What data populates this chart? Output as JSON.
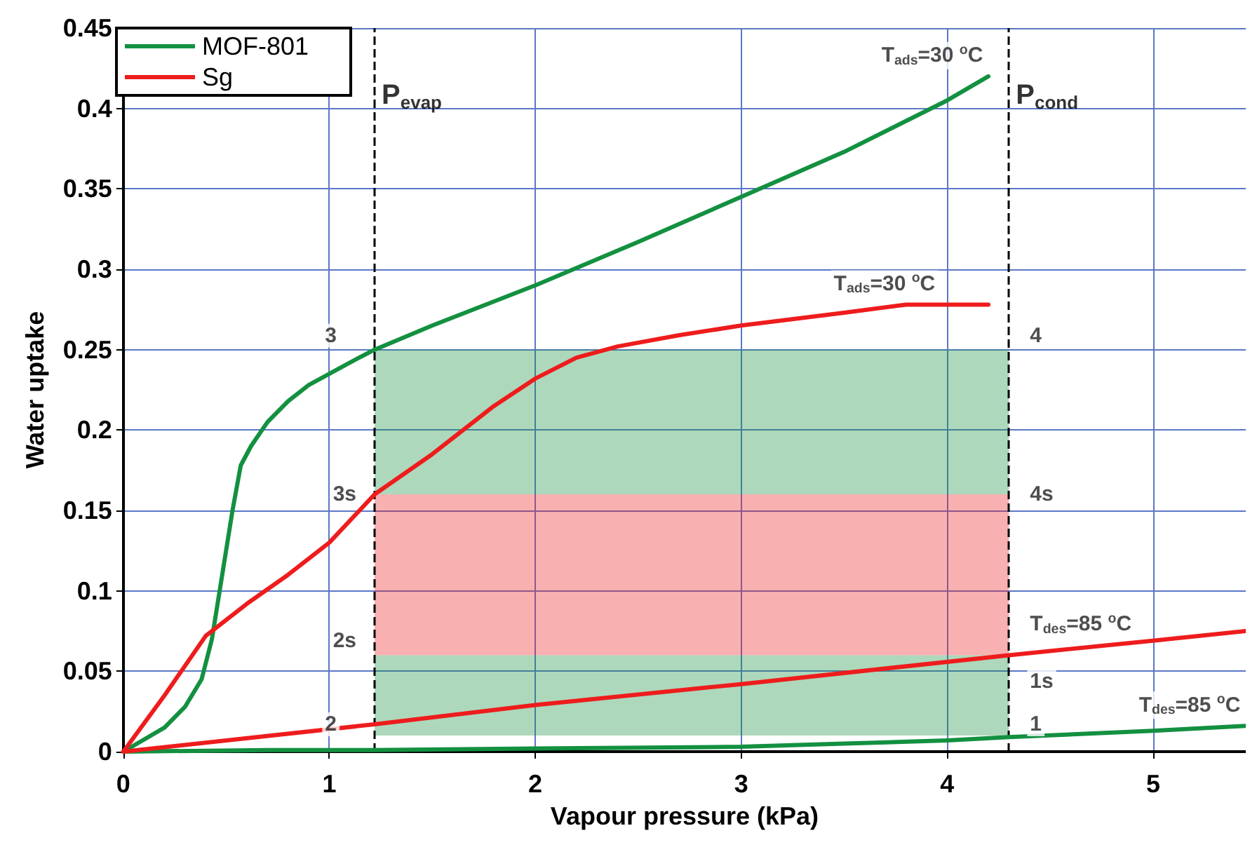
{
  "chart_data": {
    "type": "line",
    "xlabel": "Vapour pressure (kPa)",
    "ylabel": "Water uptake",
    "xlim": [
      0,
      5.45
    ],
    "xticks": [
      0,
      1,
      2,
      3,
      4,
      5
    ],
    "ylim": [
      0,
      0.45
    ],
    "yticks": [
      0,
      0.05,
      0.1,
      0.15,
      0.2,
      0.25,
      0.3,
      0.35,
      0.4,
      0.45
    ],
    "grid": true,
    "legend": "top left",
    "line_style": "solid",
    "marker": "none",
    "series": [
      {
        "name": "MOF-801",
        "color": "#139040",
        "x": [
          0,
          0.2,
          0.3,
          0.38,
          0.43,
          0.48,
          0.53,
          0.57,
          0.62,
          0.7,
          0.8,
          0.9,
          1.0,
          1.1,
          1.22,
          1.5,
          2,
          2.5,
          3,
          3.5,
          4,
          4.2
        ],
        "values": [
          0,
          0.015,
          0.028,
          0.045,
          0.07,
          0.11,
          0.15,
          0.178,
          0.19,
          0.205,
          0.218,
          0.228,
          0.235,
          0.242,
          0.25,
          0.265,
          0.29,
          0.317,
          0.345,
          0.373,
          0.405,
          0.42
        ]
      },
      {
        "name": "Sg",
        "color": "#ee1c1c",
        "x": [
          0,
          0.2,
          0.4,
          0.6,
          0.8,
          1.0,
          1.22,
          1.5,
          1.8,
          2.0,
          2.2,
          2.4,
          2.7,
          3.0,
          3.5,
          3.8,
          4.2
        ],
        "values": [
          0,
          0.035,
          0.072,
          0.092,
          0.11,
          0.13,
          0.16,
          0.185,
          0.215,
          0.232,
          0.245,
          0.252,
          0.259,
          0.265,
          0.273,
          0.278,
          0.278
        ]
      },
      {
        "color": "#139040",
        "x": [
          0,
          0.7,
          1.22,
          2,
          3,
          3.5,
          4,
          4.3,
          5,
          5.45
        ],
        "values": [
          0,
          0.001,
          0.001,
          0.002,
          0.003,
          0.005,
          0.007,
          0.009,
          0.013,
          0.016
        ]
      },
      {
        "color": "#ee1c1c",
        "x": [
          0,
          1.22,
          2,
          3,
          4.3,
          5,
          5.45
        ],
        "values": [
          0,
          0.017,
          0.029,
          0.042,
          0.06,
          0.069,
          0.075
        ]
      }
    ],
    "ref_lines": [
      {
        "axis": "x",
        "value": 1.22,
        "label": "P$_{evap}$",
        "line_style": "dashed",
        "color": "#000000"
      },
      {
        "axis": "x",
        "value": 4.3,
        "label": "P$_{cond}$",
        "line_style": "dashed",
        "color": "#000000"
      }
    ],
    "bands": [
      {
        "axis": "y",
        "from": 0.16,
        "to": 0.25,
        "color": "#139040"
      },
      {
        "axis": "y",
        "from": 0.06,
        "to": 0.16,
        "color": "#ee1c1c"
      },
      {
        "axis": "y",
        "from": 0.01,
        "to": 0.06,
        "color": "#139040"
      }
    ],
    "annotations": [
      {
        "text": "T$_{ads}$=30 $^{o}$C",
        "x": 4.2,
        "y": 0.42
      },
      {
        "text": "T$_{ads}$=30 $^{o}$C",
        "x": 3.9,
        "y": 0.278
      },
      {
        "text": "T$_{des}$=85 $^{o}$C",
        "x": 4.3,
        "y": 0.06
      },
      {
        "text": "T$_{des}$=85 $^{o}$C",
        "x": 5.45,
        "y": 0.016
      },
      {
        "text": "3",
        "x": 1.22,
        "y": 0.25
      },
      {
        "text": "4",
        "x": 4.3,
        "y": 0.25
      },
      {
        "text": "3s",
        "x": 1.22,
        "y": 0.16
      },
      {
        "text": "4s",
        "x": 4.3,
        "y": 0.16
      },
      {
        "text": "2s",
        "x": 1.22,
        "y": 0.06
      },
      {
        "text": "1s",
        "x": 4.3,
        "y": 0.04
      },
      {
        "text": "2",
        "x": 1.22,
        "y": 0.017
      },
      {
        "text": "1",
        "x": 4.3,
        "y": 0.017
      }
    ]
  }
}
